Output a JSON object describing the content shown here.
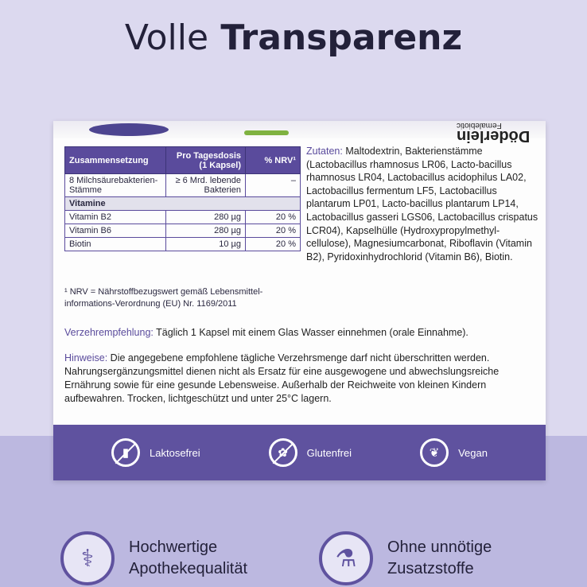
{
  "headline": {
    "light": "Volle",
    "bold": "Transparenz"
  },
  "brand": {
    "name": "Döderlein",
    "sub": "Femalebiotic"
  },
  "table": {
    "headers": [
      "Zusammensetzung",
      "Pro Tagesdosis (1 Kapsel)",
      "% NRV¹"
    ],
    "rows": [
      {
        "name": "8 Milchsäurebakterien-Stämme",
        "dose": "≥ 6 Mrd. lebende Bakterien",
        "nrv": "–"
      },
      {
        "section": "Vitamine"
      },
      {
        "name": "Vitamin B2",
        "dose": "280 µg",
        "nrv": "20 %"
      },
      {
        "name": "Vitamin B6",
        "dose": "280 µg",
        "nrv": "20 %"
      },
      {
        "name": "Biotin",
        "dose": "10 µg",
        "nrv": "20 %"
      }
    ]
  },
  "footnote": "¹ NRV = Nährstoffbezugswert gemäß Lebensmittel-informations-Verordnung (EU) Nr. 1169/2011",
  "ingredients": {
    "label": "Zutaten:",
    "text": " Maltodextrin, Bakterienstämme (Lactobacillus rhamnosus LR06, Lacto-bacillus rhamnosus LR04, Lactobacillus acidophilus LA02, Lactobacillus fermentum LF5, Lactobacillus plantarum LP01, Lacto-bacillus plantarum LP14, Lactobacillus gasseri LGS06, Lactobacillus crispatus LCR04), Kapselhülle (Hydroxypropylmethyl-cellulose), Magnesiumcarbonat, Riboflavin (Vitamin B2), Pyridoxinhydrochlorid (Vitamin B6), Biotin."
  },
  "dose": {
    "label": "Verzehrempfehlung:",
    "text": " Täglich 1 Kapsel mit einem Glas Wasser einnehmen (orale Einnahme)."
  },
  "notes": {
    "label": "Hinweise:",
    "text": " Die angegebene empfohlene tägliche Verzehrsmenge darf nicht überschritten werden. Nahrungsergänzungsmittel dienen nicht als Ersatz für eine ausgewogene und abwechslungsreiche Ernährung sowie für eine gesunde Lebensweise. Außerhalb der Reichweite von kleinen Kindern aufbewahren. Trocken, lichtgeschützt und unter 25°C lagern."
  },
  "badges": [
    {
      "label": "Laktosefrei",
      "icon": "no-milk-icon"
    },
    {
      "label": "Glutenfrei",
      "icon": "no-grain-icon"
    },
    {
      "label": "Vegan",
      "icon": "leaf-icon"
    }
  ],
  "features": [
    {
      "line1": "Hochwertige",
      "line2": "Apothekequalität",
      "icon": "caduceus-icon"
    },
    {
      "line1": "Ohne unnötige",
      "line2": "Zusatzstoffe",
      "icon": "no-flask-icon"
    }
  ],
  "colors": {
    "purple": "#5f529f",
    "background": "#dcd9ef"
  }
}
